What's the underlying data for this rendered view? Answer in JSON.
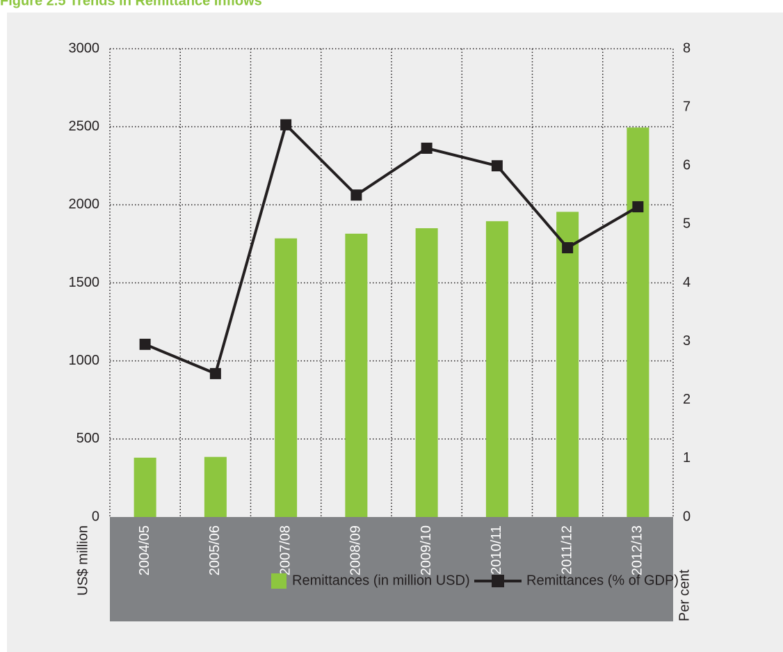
{
  "chart_data": {
    "type": "bar",
    "title": "Figure 2.5 Trends in Remittance Inflows",
    "categories": [
      "2004/05",
      "2005/06",
      "2007/08",
      "2008/09",
      "2009/10",
      "2010/11",
      "2011/12",
      "2012/13"
    ],
    "series": [
      {
        "name": "Remittances (in million USD)",
        "type": "bar",
        "color": "#8dc63f",
        "values": [
          380,
          385,
          1785,
          1815,
          1850,
          1895,
          1955,
          2495
        ]
      },
      {
        "name": "Remittances (% of GDP)",
        "type": "line",
        "color": "#231f20",
        "axis": "y2",
        "values": [
          2.95,
          2.45,
          6.7,
          5.5,
          6.3,
          6.0,
          4.6,
          5.3
        ]
      }
    ],
    "ylabel": "US$ million",
    "y2label": "Per cent",
    "ylim": [
      0,
      3000
    ],
    "yticks": [
      0,
      500,
      1000,
      1500,
      2000,
      2500,
      3000
    ],
    "y2lim": [
      0,
      8
    ],
    "y2ticks": [
      0,
      1,
      2,
      3,
      4,
      5,
      6,
      7,
      8
    ],
    "grid": true
  }
}
